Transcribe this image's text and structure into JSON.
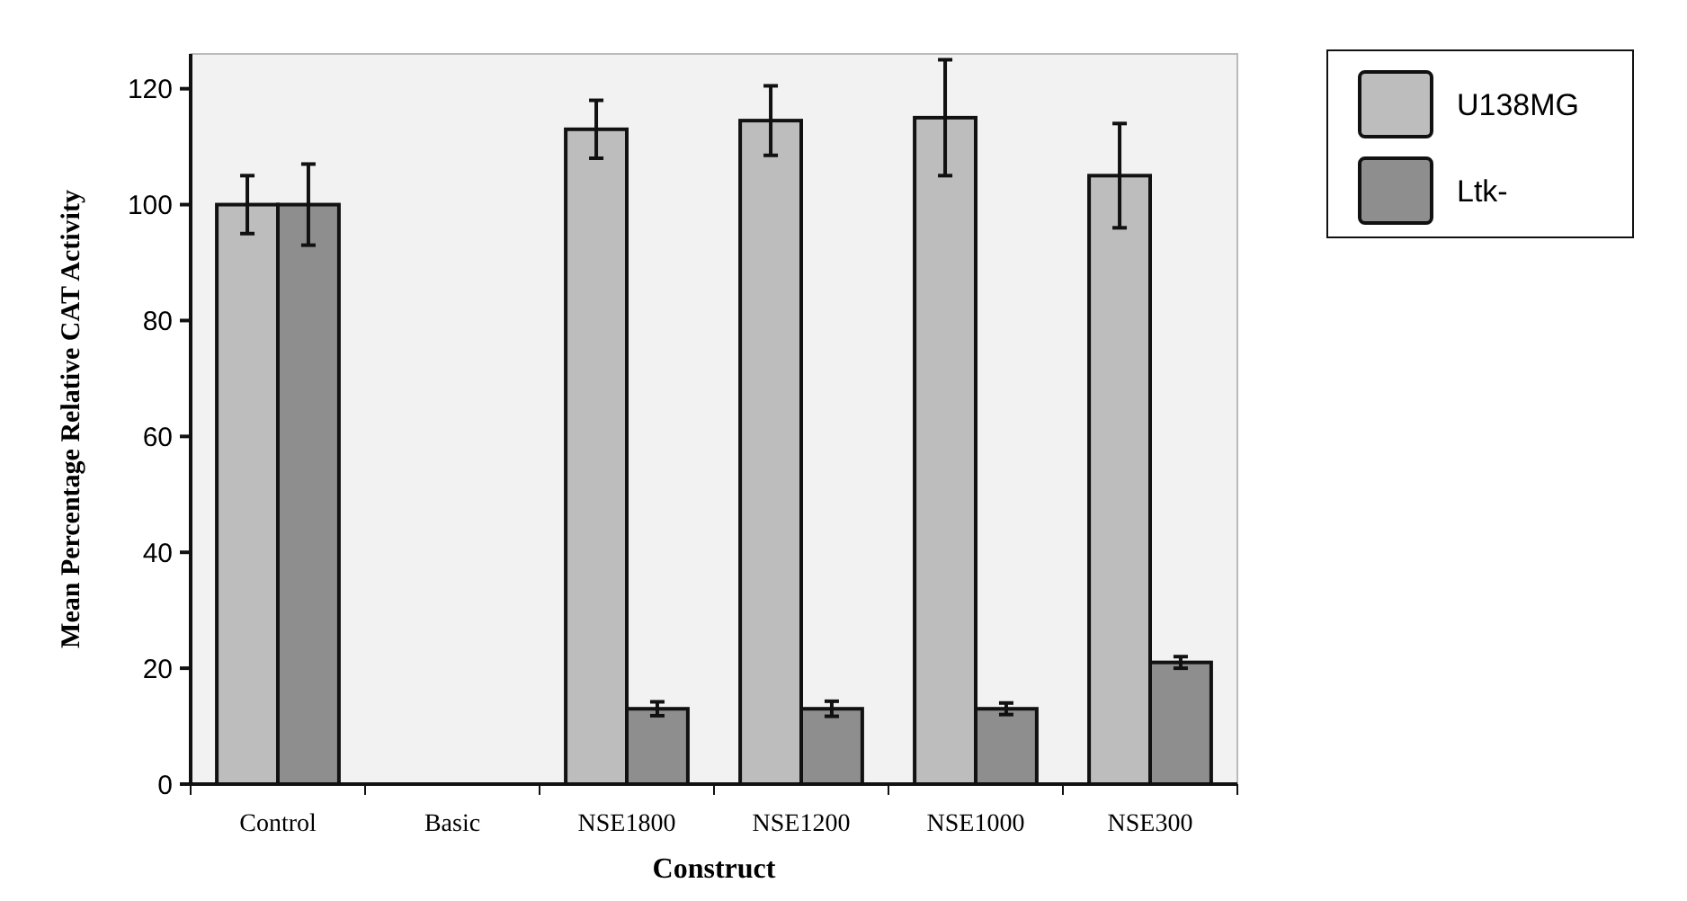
{
  "chart_data": {
    "type": "bar",
    "xlabel": "Construct",
    "ylabel": "Mean Percentage Relative CAT Activity",
    "categories": [
      "Control",
      "Basic",
      "NSE1800",
      "NSE1200",
      "NSE1000",
      "NSE300"
    ],
    "series": [
      {
        "name": "U138MG",
        "color": "#bdbdbd",
        "values": [
          100,
          0,
          113,
          114.5,
          115,
          105
        ],
        "errors": [
          5,
          null,
          5,
          6,
          10,
          9
        ]
      },
      {
        "name": "Ltk-",
        "color": "#8e8e8e",
        "values": [
          100,
          0,
          13,
          13,
          13,
          21
        ],
        "errors": [
          7,
          null,
          1.2,
          1.3,
          1,
          1
        ]
      }
    ],
    "ylim": [
      0,
      126
    ],
    "yticks": [
      0,
      20,
      40,
      60,
      80,
      100,
      120
    ],
    "grid": false,
    "legend": "top right"
  }
}
